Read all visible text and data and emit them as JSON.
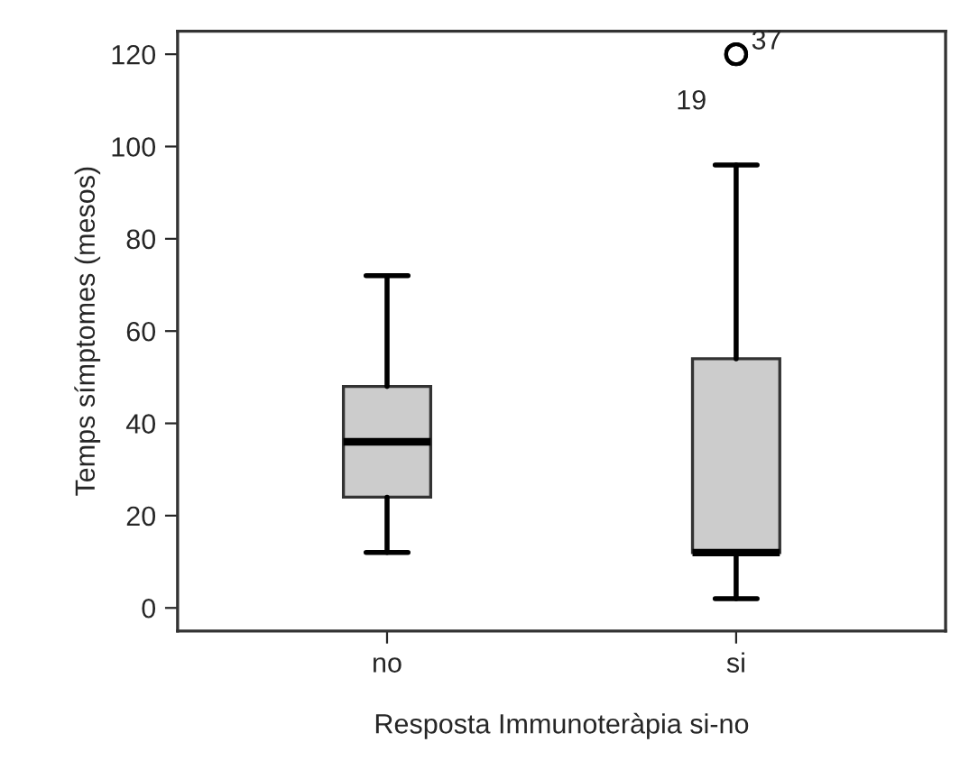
{
  "chart_data": {
    "type": "box",
    "xlabel": "Resposta Immunoteràpia si-no",
    "ylabel": "Temps símptomes (mesos)",
    "categories": [
      "no",
      "si"
    ],
    "boxes": [
      {
        "low": 12,
        "q1": 24,
        "median": 36,
        "q3": 48,
        "high": 72
      },
      {
        "low": 2,
        "q1": 12,
        "median": 12,
        "q3": 54,
        "high": 96,
        "outliers": [
          120,
          120
        ]
      }
    ],
    "color": "#cccccc",
    "ylim": [
      -5,
      125
    ],
    "yticks": [
      0,
      20,
      40,
      60,
      80,
      100,
      120
    ],
    "grid": false,
    "annotations": [
      "19",
      "37"
    ]
  }
}
